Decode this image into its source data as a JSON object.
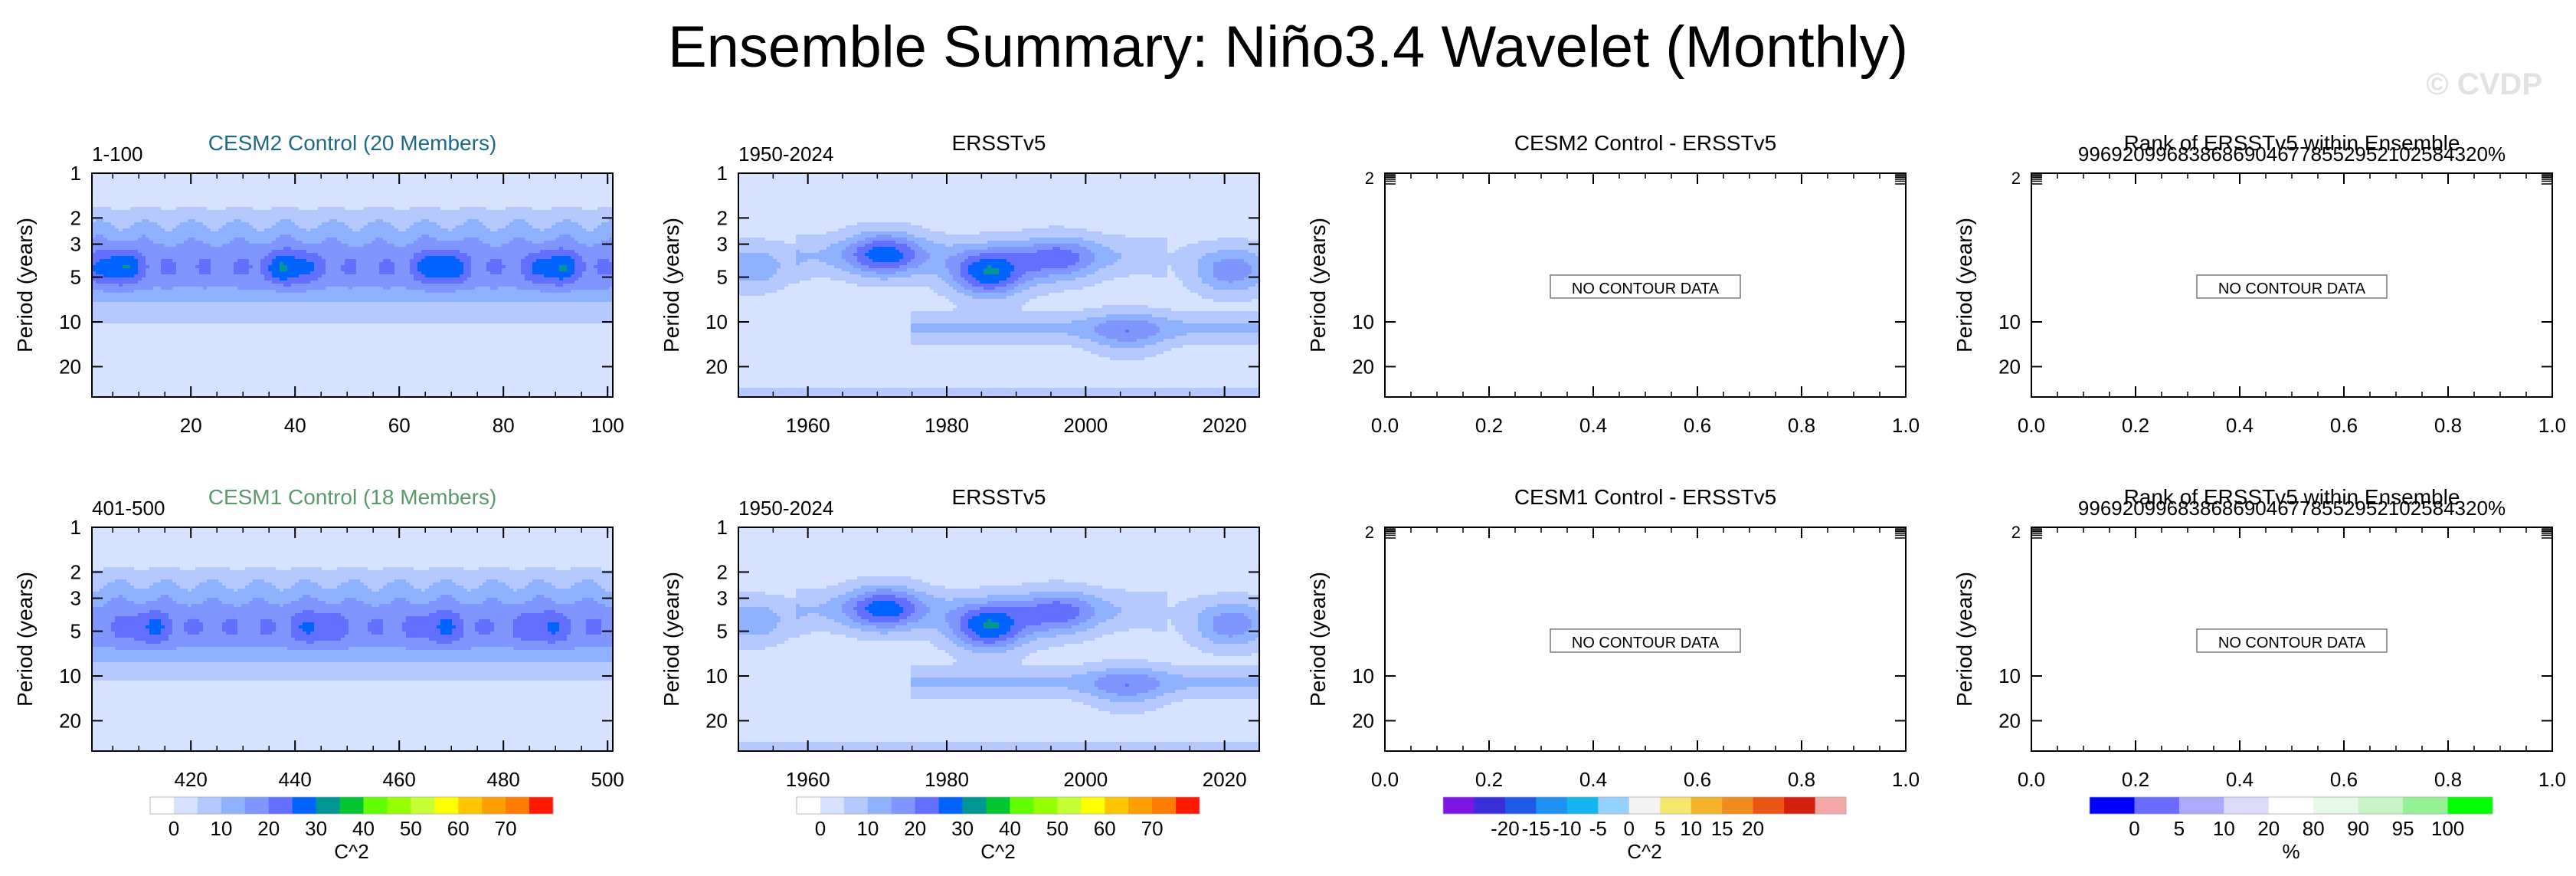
{
  "title": "Ensemble Summary: Niño3.4 Wavelet (Monthly)",
  "watermark": "© CVDP",
  "colors": {
    "power": [
      "#ffffff",
      "#d6e2ff",
      "#b5c9ff",
      "#8eb2ff",
      "#7f96ff",
      "#6370ff",
      "#0063ff",
      "#009696",
      "#00c633",
      "#63ff00",
      "#96ff00",
      "#c6ff33",
      "#ffff00",
      "#ffc600",
      "#ffa000",
      "#ff7c00",
      "#ff1900"
    ],
    "diff": [
      "#7c15e6",
      "#3a2ddb",
      "#1d5ae8",
      "#1d92f3",
      "#12b7f0",
      "#96d2ff",
      "#f5f5f5",
      "#f5e76e",
      "#f5b42a",
      "#f28c1e",
      "#ea5514",
      "#d41e0f",
      "#f4a8a8"
    ],
    "rank": [
      "#0000ff",
      "#6b6bff",
      "#aaaaff",
      "#dcdcfa",
      "#ffffff",
      "#e6fae6",
      "#c8f5c8",
      "#96f096",
      "#00ff00"
    ]
  },
  "chart_data": [
    {
      "id": "p1",
      "type": "heatmap",
      "title": "CESM2 Control (20 Members)",
      "title_color": "#1a6a8a",
      "left_label": "1-100",
      "ylabel": "Period (years)",
      "xlabel": "",
      "xlim": [
        1,
        101
      ],
      "ylim": [
        1,
        32
      ],
      "y_scale": "log",
      "y_reversed": true,
      "xticks": [
        20,
        40,
        60,
        80,
        100
      ],
      "yticks": [
        1,
        2,
        3,
        5,
        10,
        20
      ],
      "grid": false,
      "filled": true,
      "field": {
        "kind": "model",
        "peak_period": 4.3,
        "peak_level": 6,
        "peaks_x": [
          6,
          39,
          68,
          90
        ],
        "band_width": 0.28
      }
    },
    {
      "id": "p2",
      "type": "heatmap",
      "title": "ERSSTv5",
      "title_color": "#000000",
      "left_label": "1950-2024",
      "ylabel": "Period (years)",
      "xlabel": "",
      "xlim": [
        1950,
        2025
      ],
      "ylim": [
        1,
        32
      ],
      "y_scale": "log",
      "y_reversed": true,
      "xticks": [
        1960,
        1980,
        2000,
        2020
      ],
      "yticks": [
        1,
        2,
        3,
        5,
        10,
        20
      ],
      "grid": false,
      "filled": true,
      "field": {
        "kind": "obs",
        "peaks": [
          [
            1971,
            3.5,
            5
          ],
          [
            1986,
            4.8,
            6
          ],
          [
            1996,
            3.8,
            4
          ],
          [
            2021,
            4.6,
            4
          ],
          [
            1952,
            4.4,
            3
          ],
          [
            2006,
            12,
            3
          ]
        ]
      }
    },
    {
      "id": "p3",
      "type": "heatmap",
      "title": "CESM2 Control - ERSSTv5",
      "title_color": "#000000",
      "left_label": "",
      "ylabel": "Period (years)",
      "xlabel": "",
      "xlim": [
        0,
        1
      ],
      "ylim": [
        1,
        32
      ],
      "y_scale": "log",
      "y_reversed": true,
      "xticks": [
        0.0,
        0.2,
        0.4,
        0.6,
        0.8,
        1.0
      ],
      "yticks": [
        10,
        20
      ],
      "grid": false,
      "filled": false,
      "message": "NO CONTOUR DATA"
    },
    {
      "id": "p4",
      "type": "heatmap",
      "title": "Rank of ERSSTv5 within Ensemble",
      "overprint": "9969209968386869046778552952102584320%",
      "title_color": "#000000",
      "left_label": "",
      "ylabel": "Period (years)",
      "xlabel": "",
      "xlim": [
        0,
        1
      ],
      "ylim": [
        1,
        32
      ],
      "y_scale": "log",
      "y_reversed": true,
      "xticks": [
        0.0,
        0.2,
        0.4,
        0.6,
        0.8,
        1.0
      ],
      "yticks": [
        10,
        20
      ],
      "grid": false,
      "filled": false,
      "message": "NO CONTOUR DATA"
    },
    {
      "id": "p5",
      "type": "heatmap",
      "title": "CESM1 Control (18 Members)",
      "title_color": "#5a9a6a",
      "left_label": "401-500",
      "ylabel": "Period (years)",
      "xlabel": "",
      "xlim": [
        401,
        501
      ],
      "ylim": [
        1,
        32
      ],
      "y_scale": "log",
      "y_reversed": true,
      "xticks": [
        420,
        440,
        460,
        480,
        500
      ],
      "yticks": [
        1,
        2,
        3,
        5,
        10,
        20
      ],
      "grid": false,
      "filled": true,
      "field": {
        "kind": "model",
        "peak_period": 4.7,
        "peak_level": 5,
        "peaks_x": [
          412,
          444,
          468,
          488
        ],
        "band_width": 0.3
      }
    },
    {
      "id": "p6",
      "type": "heatmap",
      "title": "ERSSTv5",
      "title_color": "#000000",
      "left_label": "1950-2024",
      "ylabel": "Period (years)",
      "xlabel": "",
      "xlim": [
        1950,
        2025
      ],
      "ylim": [
        1,
        32
      ],
      "y_scale": "log",
      "y_reversed": true,
      "xticks": [
        1960,
        1980,
        2000,
        2020
      ],
      "yticks": [
        1,
        2,
        3,
        5,
        10,
        20
      ],
      "grid": false,
      "filled": true,
      "field": {
        "kind": "obs",
        "peaks": [
          [
            1971,
            3.5,
            5
          ],
          [
            1986,
            4.8,
            6
          ],
          [
            1996,
            3.8,
            4
          ],
          [
            2021,
            4.6,
            4
          ],
          [
            1952,
            4.4,
            3
          ],
          [
            2006,
            12,
            3
          ]
        ]
      }
    },
    {
      "id": "p7",
      "type": "heatmap",
      "title": "CESM1 Control - ERSSTv5",
      "title_color": "#000000",
      "left_label": "",
      "ylabel": "Period (years)",
      "xlabel": "",
      "xlim": [
        0,
        1
      ],
      "ylim": [
        1,
        32
      ],
      "y_scale": "log",
      "y_reversed": true,
      "xticks": [
        0.0,
        0.2,
        0.4,
        0.6,
        0.8,
        1.0
      ],
      "yticks": [
        10,
        20
      ],
      "grid": false,
      "filled": false,
      "message": "NO CONTOUR DATA"
    },
    {
      "id": "p8",
      "type": "heatmap",
      "title": "Rank of ERSSTv5 within Ensemble",
      "overprint": "9969209968386869046778552952102584320%",
      "title_color": "#000000",
      "left_label": "",
      "ylabel": "Period (years)",
      "xlabel": "",
      "xlim": [
        0,
        1
      ],
      "ylim": [
        1,
        32
      ],
      "y_scale": "log",
      "y_reversed": true,
      "xticks": [
        0.0,
        0.2,
        0.4,
        0.6,
        0.8,
        1.0
      ],
      "yticks": [
        10,
        20
      ],
      "grid": false,
      "filled": false,
      "message": "NO CONTOUR DATA"
    }
  ],
  "colorbars": [
    {
      "id": "cb1",
      "palette": "power",
      "labels": [
        "0",
        "10",
        "20",
        "30",
        "40",
        "50",
        "60",
        "70"
      ],
      "label": "C^2"
    },
    {
      "id": "cb2",
      "palette": "power",
      "labels": [
        "0",
        "10",
        "20",
        "30",
        "40",
        "50",
        "60",
        "70"
      ],
      "label": "C^2"
    },
    {
      "id": "cb3",
      "palette": "diff",
      "labels": [
        "-20",
        "-15",
        "-10",
        "-5",
        "0",
        "5",
        "10",
        "15",
        "20"
      ],
      "label": "C^2"
    },
    {
      "id": "cb4",
      "palette": "rank",
      "labels": [
        "0",
        "5",
        "10",
        "20",
        "80",
        "90",
        "95",
        "100"
      ],
      "label": "%"
    }
  ]
}
